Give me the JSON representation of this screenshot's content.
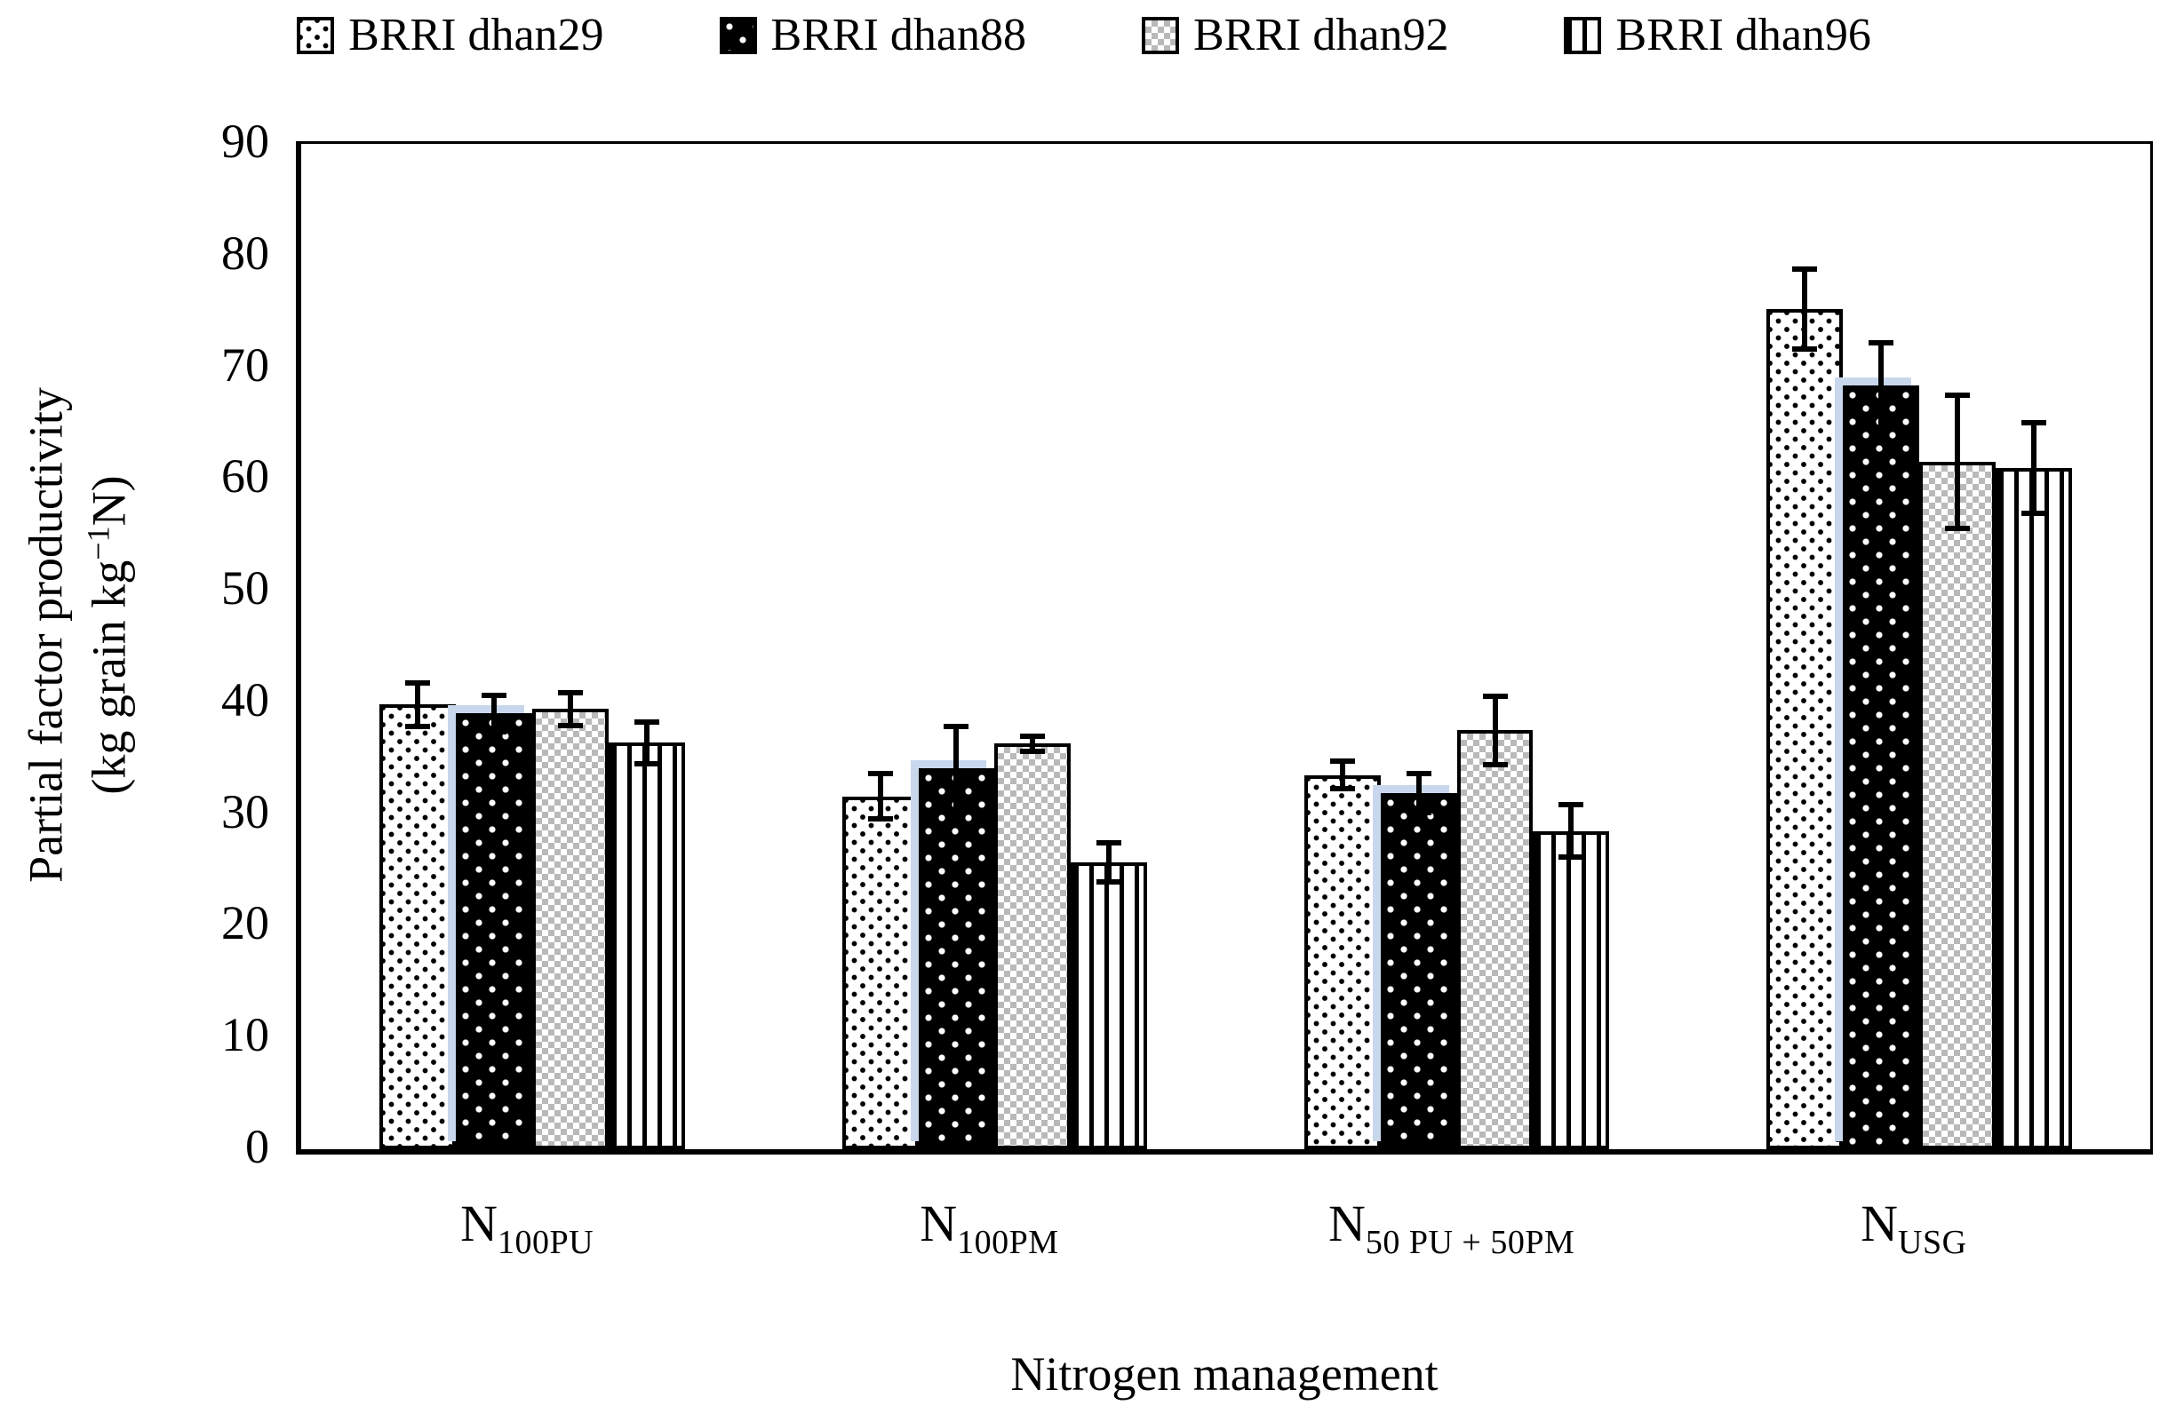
{
  "legend": {
    "items": [
      {
        "label": "BRRI dhan29",
        "pattern": "dots-black-on-white"
      },
      {
        "label": "BRRI dhan88",
        "pattern": "dots-white-on-black"
      },
      {
        "label": "BRRI dhan92",
        "pattern": "gray-checker"
      },
      {
        "label": "BRRI dhan96",
        "pattern": "vertical-stripes"
      }
    ]
  },
  "chart_data": {
    "type": "bar",
    "title": "",
    "categories": [
      "N100PU",
      "N100PM",
      "N50 PU + 50PM",
      "NUSG"
    ],
    "category_labels": [
      {
        "base": "N",
        "sub": "100PU"
      },
      {
        "base": "N",
        "sub": "100PM"
      },
      {
        "base": "N",
        "sub": "50 PU + 50PM"
      },
      {
        "base": "N",
        "sub": "USG"
      }
    ],
    "series": [
      {
        "name": "BRRI dhan29",
        "pattern": "dots-black-on-white",
        "values": [
          39.8,
          31.6,
          33.5,
          75.2
        ],
        "errors": [
          2.2,
          2.3,
          1.5,
          3.8
        ]
      },
      {
        "name": "BRRI dhan88",
        "pattern": "dots-white-on-black",
        "values": [
          39.0,
          34.1,
          31.9,
          68.4
        ],
        "errors": [
          1.9,
          4.0,
          2.0,
          4.0
        ],
        "shadow": "#c9d7ec"
      },
      {
        "name": "BRRI dhan92",
        "pattern": "gray-checker",
        "values": [
          39.4,
          36.3,
          37.5,
          61.5
        ],
        "errors": [
          1.7,
          0.9,
          3.3,
          6.2
        ]
      },
      {
        "name": "BRRI dhan96",
        "pattern": "vertical-stripes",
        "values": [
          36.4,
          25.7,
          28.5,
          61.0
        ],
        "errors": [
          2.1,
          2.0,
          2.6,
          4.3
        ]
      }
    ],
    "xlabel": "Nitrogen management",
    "ylabel_line1": "Partial factor productivity",
    "ylabel_line2_pre": "(kg grain kg",
    "ylabel_sup": "−1",
    "ylabel_line2_post": "N)",
    "ylim": [
      0,
      90
    ],
    "ytick_step": 10,
    "grid": false,
    "legend_position": "top",
    "bar_group_fraction": 0.66,
    "axis_color": "#000000",
    "error_bar_color": "#000000",
    "shadow_color": "#c9d7ec"
  }
}
